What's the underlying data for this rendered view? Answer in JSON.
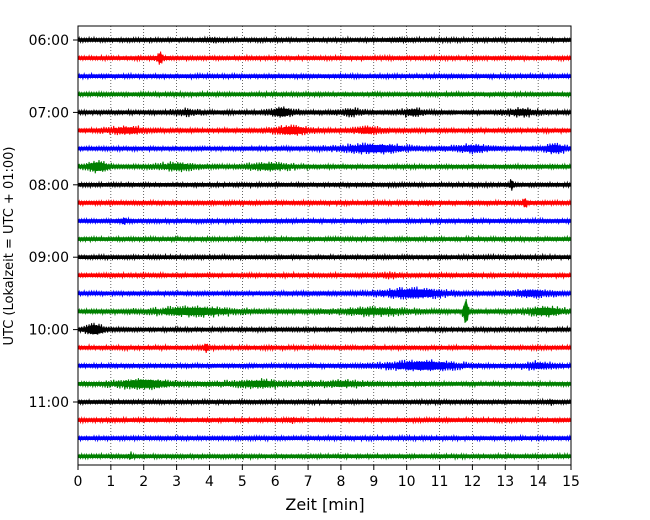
{
  "chart_data": {
    "type": "line",
    "title": "",
    "xlabel": "Zeit  [min]",
    "ylabel": "UTC (Lokalzeit = UTC + 01:00)",
    "xlim": [
      0,
      15
    ],
    "x_ticks": [
      "0",
      "1",
      "2",
      "3",
      "4",
      "5",
      "6",
      "7",
      "8",
      "9",
      "10",
      "11",
      "12",
      "13",
      "14",
      "15"
    ],
    "y_ticks": [
      "06:00",
      "07:00",
      "08:00",
      "09:00",
      "10:00",
      "11:00"
    ],
    "grid": "vertical dotted",
    "row_minutes": 15,
    "colors": [
      "#000000",
      "#ff0000",
      "#0000ff",
      "#008000"
    ],
    "traces": [
      {
        "start": "06:00",
        "color": "#000000",
        "events": [
          {
            "t": 4.1,
            "a": 0.5,
            "w": 0.2
          },
          {
            "t": 9.8,
            "a": 0.5,
            "w": 0.2
          }
        ]
      },
      {
        "start": "06:15",
        "color": "#ff0000",
        "events": [
          {
            "t": 2.5,
            "a": 1.6,
            "w": 0.15
          }
        ]
      },
      {
        "start": "06:30",
        "color": "#0000ff",
        "events": []
      },
      {
        "start": "06:45",
        "color": "#008000",
        "events": []
      },
      {
        "start": "07:00",
        "color": "#000000",
        "events": [
          {
            "t": 3.3,
            "a": 0.8,
            "w": 0.6
          },
          {
            "t": 6.2,
            "a": 1.3,
            "w": 0.6
          },
          {
            "t": 8.3,
            "a": 0.9,
            "w": 0.6
          },
          {
            "t": 10.2,
            "a": 1.0,
            "w": 0.6
          },
          {
            "t": 13.5,
            "a": 1.0,
            "w": 0.8
          }
        ]
      },
      {
        "start": "07:15",
        "color": "#ff0000",
        "events": [
          {
            "t": 1.5,
            "a": 1.0,
            "w": 1.0
          },
          {
            "t": 6.5,
            "a": 1.2,
            "w": 1.0
          },
          {
            "t": 8.8,
            "a": 1.0,
            "w": 0.7
          }
        ]
      },
      {
        "start": "07:30",
        "color": "#0000ff",
        "events": [
          {
            "t": 9.0,
            "a": 1.2,
            "w": 1.8
          },
          {
            "t": 12.0,
            "a": 1.0,
            "w": 1.0
          },
          {
            "t": 14.5,
            "a": 1.2,
            "w": 0.6
          }
        ]
      },
      {
        "start": "07:45",
        "color": "#008000",
        "events": [
          {
            "t": 0.6,
            "a": 1.4,
            "w": 0.6
          },
          {
            "t": 3.0,
            "a": 1.0,
            "w": 1.0
          },
          {
            "t": 5.8,
            "a": 1.0,
            "w": 1.2
          }
        ]
      },
      {
        "start": "08:00",
        "color": "#000000",
        "events": [
          {
            "t": 13.2,
            "a": 1.4,
            "w": 0.1
          }
        ]
      },
      {
        "start": "08:15",
        "color": "#ff0000",
        "events": [
          {
            "t": 13.6,
            "a": 1.4,
            "w": 0.1
          },
          {
            "t": 10.6,
            "a": 0.6,
            "w": 0.08
          }
        ]
      },
      {
        "start": "08:30",
        "color": "#0000ff",
        "events": [
          {
            "t": 1.4,
            "a": 1.0,
            "w": 0.12
          }
        ]
      },
      {
        "start": "08:45",
        "color": "#008000",
        "events": []
      },
      {
        "start": "09:00",
        "color": "#000000",
        "events": []
      },
      {
        "start": "09:15",
        "color": "#ff0000",
        "events": [
          {
            "t": 9.5,
            "a": 0.6,
            "w": 0.5
          }
        ]
      },
      {
        "start": "09:30",
        "color": "#0000ff",
        "events": [
          {
            "t": 10.2,
            "a": 1.3,
            "w": 1.8
          },
          {
            "t": 13.8,
            "a": 1.0,
            "w": 1.0
          }
        ]
      },
      {
        "start": "09:45",
        "color": "#008000",
        "events": [
          {
            "t": 3.5,
            "a": 1.2,
            "w": 2.2
          },
          {
            "t": 9.0,
            "a": 1.0,
            "w": 2.0
          },
          {
            "t": 11.8,
            "a": 3.5,
            "w": 0.12
          },
          {
            "t": 14.2,
            "a": 1.2,
            "w": 1.0
          }
        ]
      },
      {
        "start": "10:00",
        "color": "#000000",
        "events": [
          {
            "t": 0.5,
            "a": 1.5,
            "w": 0.5
          }
        ]
      },
      {
        "start": "10:15",
        "color": "#ff0000",
        "events": [
          {
            "t": 3.9,
            "a": 1.2,
            "w": 0.15
          }
        ]
      },
      {
        "start": "10:30",
        "color": "#0000ff",
        "events": [
          {
            "t": 10.5,
            "a": 1.3,
            "w": 2.0
          },
          {
            "t": 14.0,
            "a": 0.9,
            "w": 0.8
          }
        ]
      },
      {
        "start": "10:45",
        "color": "#008000",
        "events": [
          {
            "t": 2.0,
            "a": 1.3,
            "w": 1.5
          },
          {
            "t": 5.5,
            "a": 1.0,
            "w": 1.5
          },
          {
            "t": 8.0,
            "a": 0.9,
            "w": 1.2
          }
        ]
      },
      {
        "start": "11:00",
        "color": "#000000",
        "events": [
          {
            "t": 14.4,
            "a": 0.7,
            "w": 0.08
          }
        ]
      },
      {
        "start": "11:15",
        "color": "#ff0000",
        "events": [
          {
            "t": 6.5,
            "a": 0.7,
            "w": 0.12
          }
        ]
      },
      {
        "start": "11:30",
        "color": "#0000ff",
        "events": []
      },
      {
        "start": "11:45",
        "color": "#008000",
        "events": [
          {
            "t": 1.6,
            "a": 0.9,
            "w": 0.08
          }
        ]
      }
    ]
  }
}
